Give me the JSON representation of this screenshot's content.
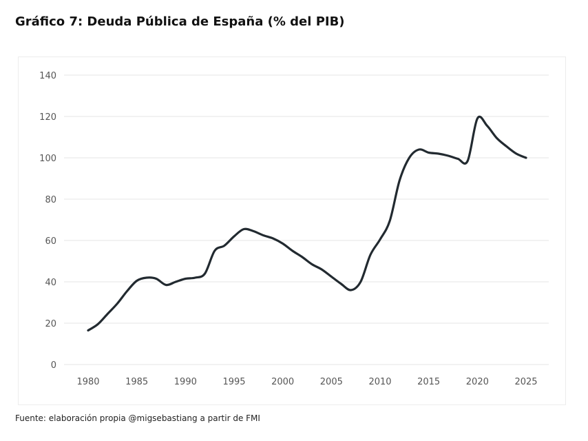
{
  "title": "Gráfico 7: Deuda Pública de España (% del PIB)",
  "source": "Fuente: elaboración propia @migsebastiang a partir de FMI",
  "chart_data": {
    "type": "line",
    "title": "Gráfico 7: Deuda Pública de España (% del PIB)",
    "xlabel": "",
    "ylabel": "",
    "xlim": [
      1980,
      2025
    ],
    "ylim": [
      0,
      140
    ],
    "grid": true,
    "legend": "none",
    "xticks": [
      1980,
      1985,
      1990,
      1995,
      2000,
      2005,
      2010,
      2015,
      2020,
      2025
    ],
    "xtick_labels": [
      "1980",
      "1985",
      "1990",
      "1995",
      "2000",
      "2005",
      "2010",
      "2015",
      "2020",
      "2025"
    ],
    "yticks": [
      0,
      20,
      40,
      60,
      80,
      100,
      120,
      140
    ],
    "ytick_labels": [
      "0",
      "20",
      "40",
      "60",
      "80",
      "100",
      "120",
      "140"
    ],
    "line_color": "#222a30",
    "grid_color": "#e6e6e6",
    "series": [
      {
        "name": "Deuda Pública (% del PIB)",
        "x": [
          1980,
          1981,
          1982,
          1983,
          1984,
          1985,
          1986,
          1987,
          1988,
          1989,
          1990,
          1991,
          1992,
          1993,
          1994,
          1995,
          1996,
          1997,
          1998,
          1999,
          2000,
          2001,
          2002,
          2003,
          2004,
          2005,
          2006,
          2007,
          2008,
          2009,
          2010,
          2011,
          2012,
          2013,
          2014,
          2015,
          2016,
          2017,
          2018,
          2019,
          2020,
          2021,
          2022,
          2023,
          2024,
          2025
        ],
        "values": [
          16.5,
          19.5,
          24.5,
          29.5,
          35.5,
          40.5,
          42,
          41.5,
          38.5,
          40,
          41.5,
          42,
          44,
          55,
          57.5,
          62,
          65.5,
          64.5,
          62.5,
          61,
          58.5,
          55,
          52,
          48.5,
          46,
          42.5,
          39,
          36,
          40,
          53,
          60.5,
          69.5,
          89,
          100,
          104,
          102.5,
          102,
          101,
          99.5,
          98.5,
          119,
          115.5,
          109.5,
          105.5,
          102,
          100
        ]
      }
    ]
  }
}
